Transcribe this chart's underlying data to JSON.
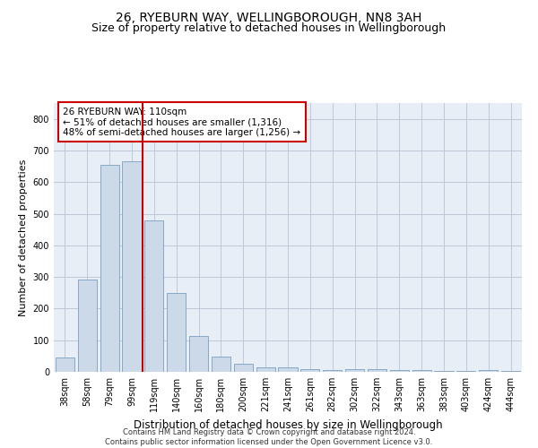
{
  "title": "26, RYEBURN WAY, WELLINGBOROUGH, NN8 3AH",
  "subtitle": "Size of property relative to detached houses in Wellingborough",
  "xlabel": "Distribution of detached houses by size in Wellingborough",
  "ylabel": "Number of detached properties",
  "bar_color": "#ccd9e8",
  "bar_edge_color": "#7aa0c0",
  "vline_color": "#cc0000",
  "annotation_text": "26 RYEBURN WAY: 110sqm\n← 51% of detached houses are smaller (1,316)\n48% of semi-detached houses are larger (1,256) →",
  "annotation_box_color": "#ffffff",
  "annotation_box_edge": "#cc0000",
  "categories": [
    "38sqm",
    "58sqm",
    "79sqm",
    "99sqm",
    "119sqm",
    "140sqm",
    "160sqm",
    "180sqm",
    "200sqm",
    "221sqm",
    "241sqm",
    "261sqm",
    "282sqm",
    "302sqm",
    "322sqm",
    "343sqm",
    "363sqm",
    "383sqm",
    "403sqm",
    "424sqm",
    "444sqm"
  ],
  "values": [
    45,
    293,
    655,
    665,
    480,
    250,
    113,
    49,
    25,
    14,
    14,
    8,
    5,
    8,
    8,
    5,
    5,
    2,
    2,
    5,
    2
  ],
  "ylim": [
    0,
    850
  ],
  "yticks": [
    0,
    100,
    200,
    300,
    400,
    500,
    600,
    700,
    800
  ],
  "grid_color": "#c0c8d8",
  "bg_color": "#e8eef5",
  "footer": "Contains HM Land Registry data © Crown copyright and database right 2024.\nContains public sector information licensed under the Open Government Licence v3.0.",
  "title_fontsize": 10,
  "subtitle_fontsize": 9,
  "xlabel_fontsize": 8.5,
  "ylabel_fontsize": 8,
  "tick_fontsize": 7,
  "footer_fontsize": 6,
  "annot_fontsize": 7.5
}
